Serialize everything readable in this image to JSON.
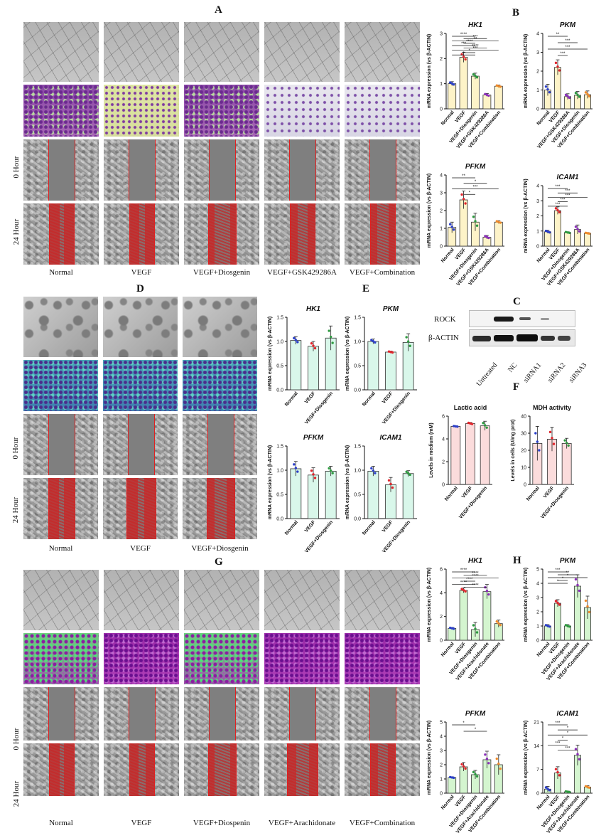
{
  "panels": {
    "A": {
      "letter": "A",
      "columns": [
        "Normal",
        "VEGF",
        "VEGF+Diosgenin",
        "VEGF+GSK429286A",
        "VEGF+Combination"
      ],
      "rows": [
        "0 Hour",
        "24 Hour"
      ]
    },
    "B": {
      "letter": "B",
      "groups": [
        "Normal",
        "VEGF",
        "VEGF+Diosgenin",
        "VEGF+GSK429286A",
        "VEGF+Combination"
      ]
    },
    "C": {
      "letter": "C",
      "bands": [
        "ROCK",
        "β-ACTIN"
      ],
      "lanes": [
        "Untreated",
        "NC",
        "siRNA1",
        "siRNA2",
        "siRNA3"
      ]
    },
    "D": {
      "letter": "D",
      "columns": [
        "Normal",
        "VEGF",
        "VEGF+Diosgenin"
      ],
      "rows": [
        "0 Hour",
        "24 Hour"
      ]
    },
    "E": {
      "letter": "E",
      "groups": [
        "Normal",
        "VEGF",
        "VEGF+Diosgenin"
      ]
    },
    "F": {
      "letter": "F"
    },
    "G": {
      "letter": "G",
      "columns": [
        "Normal",
        "VEGF",
        "VEGF+Diospenin",
        "VEGF+Arachidonate",
        "VEGF+Combination"
      ],
      "rows": [
        "0 Hour",
        "24 Hour"
      ]
    },
    "H": {
      "letter": "H",
      "groups": [
        "Normal",
        "VEGF",
        "VEGF+Diosgenin",
        "VEGF+Arachidonate",
        "VEGF+Combination"
      ]
    }
  },
  "colors": {
    "yellow_bar": "#fdf3c8",
    "mint_bar": "#d9f7ea",
    "pink_bar": "#fbdcdc",
    "lightgreen_bar": "#d4f5cf",
    "normal_point": "#2b3fc9",
    "vegf_point": "#e0262c",
    "dios_point": "#2e9a40",
    "drug_point": "#8a2fb8",
    "combo_point": "#ef8a2a",
    "scratch_line": "#e02020"
  },
  "chart_data": [
    {
      "type": "bar",
      "panel": "B",
      "title": "HK1",
      "ylabel": "mRNA expression (vs β-ACTIN)",
      "ylim": [
        0,
        3
      ],
      "yticks": [
        "0",
        "1",
        "2",
        "3"
      ],
      "categories": [
        "Normal",
        "VEGF",
        "VEGF+Diosgenin",
        "VEGF+GSK429286A",
        "VEGF+Combination"
      ],
      "values": [
        1.0,
        2.05,
        1.3,
        0.55,
        0.9
      ],
      "errors": [
        0.08,
        0.2,
        0.12,
        0.06,
        0.05
      ],
      "significance": [
        "****",
        "***",
        "**",
        "****",
        "***",
        "****",
        "***",
        "*",
        "*"
      ]
    },
    {
      "type": "bar",
      "panel": "B",
      "title": "PKM",
      "ylabel": "mRNA expression (vs β-ACTIN)",
      "ylim": [
        0,
        4
      ],
      "yticks": [
        "0",
        "1",
        "2",
        "3",
        "4"
      ],
      "categories": [
        "Normal",
        "VEGF",
        "VEGF+GSK429286A",
        "VEGF+Diosgenin",
        "VEGF+Combination"
      ],
      "values": [
        1.0,
        2.2,
        0.65,
        0.72,
        0.75
      ],
      "errors": [
        0.3,
        0.4,
        0.15,
        0.2,
        0.2
      ],
      "significance": [
        "**",
        "***",
        "***",
        "***"
      ]
    },
    {
      "type": "bar",
      "panel": "B",
      "title": "PFKM",
      "ylabel": "mRNA expression (vs β-ACTIN)",
      "ylim": [
        0,
        4
      ],
      "yticks": [
        "0",
        "1",
        "2",
        "3",
        "4"
      ],
      "categories": [
        "Normal",
        "VEGF",
        "VEGF+Diosgenin",
        "VEGF+GSK429286A",
        "VEGF+Combination"
      ],
      "values": [
        1.05,
        2.6,
        1.35,
        0.5,
        1.35
      ],
      "errors": [
        0.3,
        0.5,
        0.5,
        0.1,
        0.08
      ],
      "significance": [
        "**",
        "*",
        "***",
        "*"
      ]
    },
    {
      "type": "bar",
      "panel": "B",
      "title": "ICAM1",
      "ylabel": "mRNA expression (vs β-ACTIN)",
      "ylim": [
        0,
        4
      ],
      "yticks": [
        "0",
        "1",
        "2",
        "3",
        "4"
      ],
      "categories": [
        "Normal",
        "VEGF",
        "VEGF+Diosgenin",
        "VEGF+GSK429286A",
        "VEGF+Combination"
      ],
      "values": [
        0.95,
        2.35,
        0.9,
        1.1,
        0.85
      ],
      "errors": [
        0.1,
        0.25,
        0.05,
        0.3,
        0.05
      ],
      "significance": [
        "***",
        "***",
        "***",
        "***",
        "***"
      ]
    },
    {
      "type": "bar",
      "panel": "E",
      "title": "HK1",
      "ylabel": "mRNA expression (vs β-ACTIN)",
      "ylim": [
        0,
        1.5
      ],
      "yticks": [
        "0.0",
        "0.5",
        "1.0",
        "1.5"
      ],
      "categories": [
        "Normal",
        "VEGF",
        "VEGF+Diosgenin"
      ],
      "values": [
        1.02,
        0.9,
        1.07
      ],
      "errors": [
        0.08,
        0.1,
        0.25
      ]
    },
    {
      "type": "bar",
      "panel": "E",
      "title": "PKM",
      "ylabel": "mRNA expression (vs β-ACTIN)",
      "ylim": [
        0,
        1.5
      ],
      "yticks": [
        "0.0",
        "0.5",
        "1.0",
        "1.5"
      ],
      "categories": [
        "Normal",
        "VEGF",
        "VEGF+Diosgenin"
      ],
      "values": [
        1.0,
        0.78,
        0.98
      ],
      "errors": [
        0.05,
        0.02,
        0.18
      ]
    },
    {
      "type": "bar",
      "panel": "E",
      "title": "PFKM",
      "ylabel": "mRNA expression (vs β-ACTIN)",
      "ylim": [
        0,
        1.5
      ],
      "yticks": [
        "0.0",
        "0.5",
        "1.0",
        "1.5"
      ],
      "categories": [
        "Normal",
        "VEGF",
        "VEGF+Diosgenin"
      ],
      "values": [
        1.03,
        0.9,
        0.98
      ],
      "errors": [
        0.15,
        0.15,
        0.1
      ]
    },
    {
      "type": "bar",
      "panel": "E",
      "title": "ICAM1",
      "ylabel": "mRNA expression (vs β-ACTIN)",
      "ylim": [
        0,
        1.5
      ],
      "yticks": [
        "0.0",
        "0.5",
        "1.0",
        "1.5"
      ],
      "categories": [
        "Normal",
        "VEGF",
        "VEGF+Diosgenin"
      ],
      "values": [
        0.98,
        0.7,
        0.93
      ],
      "errors": [
        0.1,
        0.15,
        0.06
      ]
    },
    {
      "type": "bar",
      "panel": "F",
      "title": "Lactic acid",
      "ylabel": "Levels in medium (mM)",
      "ylim": [
        0,
        6
      ],
      "yticks": [
        "0",
        "2",
        "4",
        "6"
      ],
      "categories": [
        "Normal",
        "VEGF",
        "VEGF+Diosgenin"
      ],
      "values": [
        5.1,
        5.35,
        5.15
      ],
      "errors": [
        0.05,
        0.1,
        0.4
      ]
    },
    {
      "type": "bar",
      "panel": "F",
      "title": "MDH activity",
      "ylabel": "Levels in cells (U/mg prot)",
      "ylim": [
        0,
        40
      ],
      "yticks": [
        "0",
        "10",
        "20",
        "30",
        "40"
      ],
      "categories": [
        "Normal",
        "VEGF",
        "VEGF+Diosgenin"
      ],
      "values": [
        24,
        26.5,
        24
      ],
      "errors": [
        10,
        7,
        3
      ]
    },
    {
      "type": "bar",
      "panel": "H",
      "title": "HK1",
      "ylabel": "mRNA expression (vs β-ACTIN)",
      "ylim": [
        0,
        6
      ],
      "yticks": [
        "0",
        "2",
        "4",
        "6"
      ],
      "categories": [
        "Normal",
        "VEGF",
        "VEGF+Diosgenin",
        "VEGF+Arachidonate",
        "VEGF+Combination"
      ],
      "values": [
        1.0,
        4.2,
        0.9,
        4.1,
        1.4
      ],
      "errors": [
        0.08,
        0.2,
        0.6,
        0.6,
        0.3
      ],
      "significance": [
        "****",
        "****",
        "****",
        "****",
        "****",
        "****"
      ]
    },
    {
      "type": "bar",
      "panel": "H",
      "title": "PKM",
      "ylabel": "mRNA expression (vs β-ACTIN)",
      "ylim": [
        0,
        5
      ],
      "yticks": [
        "0",
        "1",
        "2",
        "3",
        "4",
        "5"
      ],
      "categories": [
        "Normal",
        "VEGF",
        "VEGF+Diosgenin",
        "VEGF+Arachidonate",
        "VEGF+Combination"
      ],
      "values": [
        1.0,
        2.6,
        1.0,
        3.8,
        2.3
      ],
      "errors": [
        0.1,
        0.25,
        0.1,
        0.8,
        0.8
      ],
      "significance": [
        "***",
        "**",
        "*",
        "*",
        "*"
      ]
    },
    {
      "type": "bar",
      "panel": "H",
      "title": "PFKM",
      "ylabel": "mRNA expression (vs β-ACTIN)",
      "ylim": [
        0,
        5
      ],
      "yticks": [
        "0",
        "1",
        "2",
        "3",
        "4",
        "5"
      ],
      "categories": [
        "Normal",
        "VEGF",
        "VEGF+Diosgenin",
        "VEGF+Arachidonate",
        "VEGF+Combination"
      ],
      "values": [
        1.1,
        1.85,
        1.3,
        2.35,
        2.0
      ],
      "errors": [
        0.05,
        0.3,
        0.3,
        0.6,
        0.7
      ],
      "significance": [
        "*",
        "*"
      ]
    },
    {
      "type": "bar",
      "panel": "H",
      "title": "ICAM1",
      "ylabel": "mRNA expression (vs β-ACTIN)",
      "ylim": [
        0,
        21
      ],
      "yticks": [
        "0",
        "7",
        "14",
        "21"
      ],
      "categories": [
        "Normal",
        "VEGF",
        "VEGF+Diosgenin",
        "VEGF+Arachidonate",
        "VEGF+Combination"
      ],
      "values": [
        1.2,
        6.0,
        0.4,
        11.2,
        1.8
      ],
      "errors": [
        0.8,
        1.8,
        0.2,
        3.0,
        0.4
      ],
      "significance": [
        "***",
        "*",
        "*",
        "*",
        "***",
        "***"
      ]
    }
  ]
}
